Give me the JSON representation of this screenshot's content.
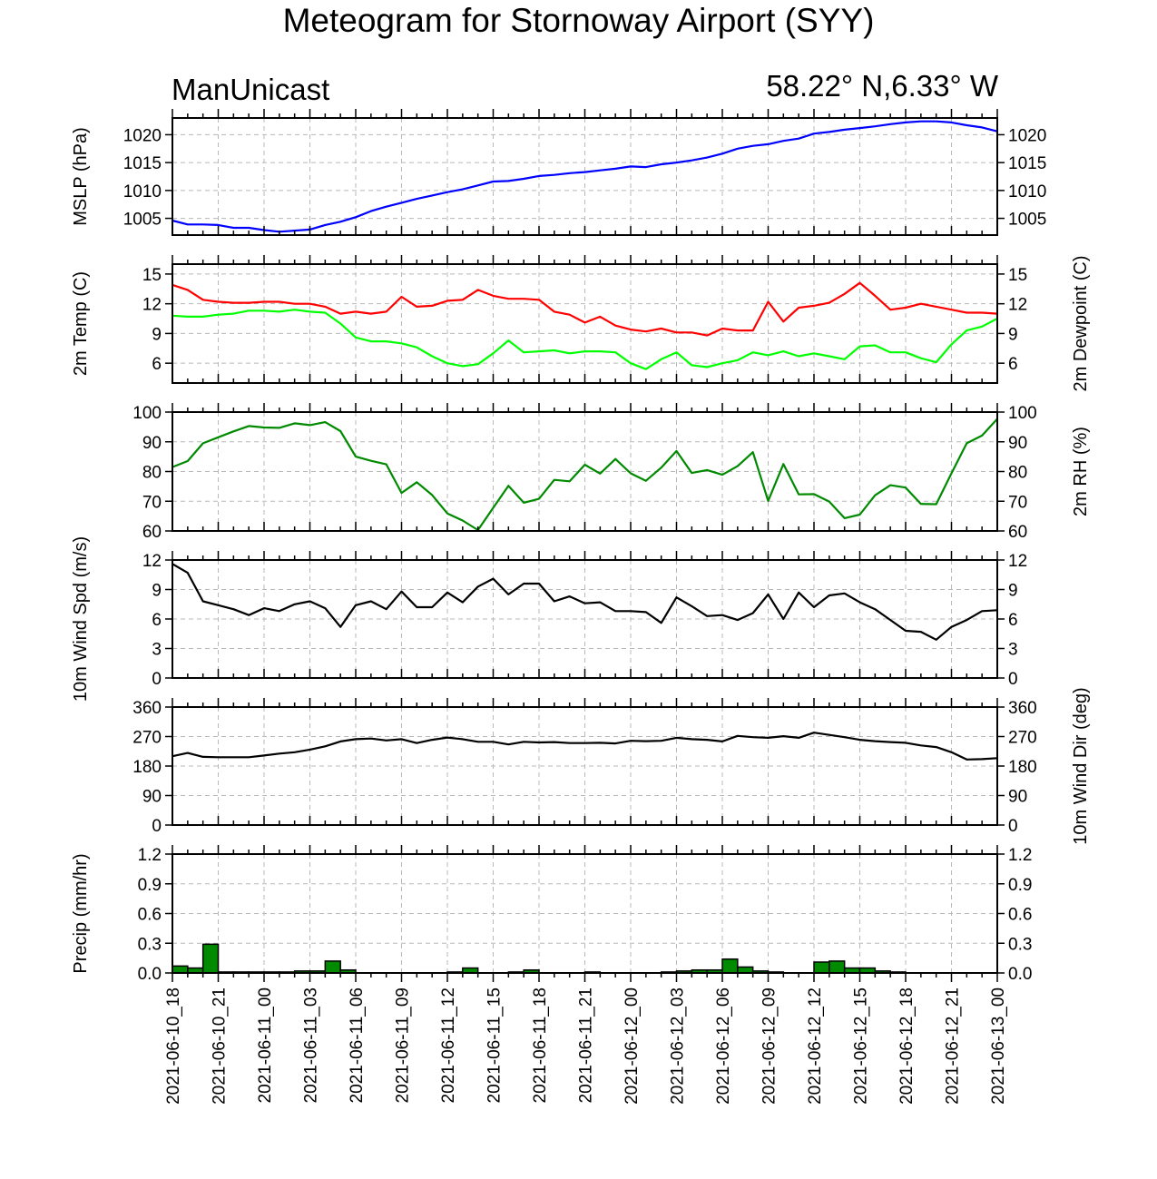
{
  "title": "Meteogram for Stornoway Airport (SYY)",
  "model": "ManUnicast",
  "location": "58.22° N,6.33° W",
  "colors": {
    "mslp": "#0000ff",
    "temp": "#ff0000",
    "dewpoint": "#00ff00",
    "rh": "#008a00",
    "wind_speed": "#000000",
    "wind_dir": "#000000",
    "precip_fill": "#008a00",
    "grid": "#b8b8b8"
  },
  "chart_data": {
    "type": "line",
    "x_axis": {
      "range_hours": [
        0,
        54
      ],
      "tick_labels": [
        "2021-06-10_18",
        "2021-06-10_21",
        "2021-06-11_00",
        "2021-06-11_03",
        "2021-06-11_06",
        "2021-06-11_09",
        "2021-06-11_12",
        "2021-06-11_15",
        "2021-06-11_18",
        "2021-06-11_21",
        "2021-06-12_00",
        "2021-06-12_03",
        "2021-06-12_06",
        "2021-06-12_09",
        "2021-06-12_12",
        "2021-06-12_15",
        "2021-06-12_18",
        "2021-06-12_21",
        "2021-06-13_00"
      ]
    },
    "panels": [
      {
        "id": "mslp",
        "type": "line",
        "ylabel_left": "MSLP (hPa)",
        "ylabel_right": "",
        "ylim": [
          1002,
          1023
        ],
        "yticks": [
          1005,
          1010,
          1015,
          1020
        ],
        "right_ticks": true,
        "series": [
          {
            "color_key": "mslp",
            "values": [
              1004.6,
              1003.9,
              1003.9,
              1003.8,
              1003.3,
              1003.3,
              1002.9,
              1002.6,
              1002.8,
              1003.0,
              1003.8,
              1004.4,
              1005.2,
              1006.3,
              1007.1,
              1007.8,
              1008.5,
              1009.1,
              1009.7,
              1010.2,
              1010.9,
              1011.6,
              1011.7,
              1012.1,
              1012.6,
              1012.8,
              1013.1,
              1013.3,
              1013.6,
              1013.9,
              1014.3,
              1014.2,
              1014.7,
              1015.0,
              1015.4,
              1015.9,
              1016.6,
              1017.5,
              1018.0,
              1018.3,
              1018.9,
              1019.3,
              1020.2,
              1020.5,
              1020.9,
              1021.2,
              1021.5,
              1021.9,
              1022.2,
              1022.4,
              1022.4,
              1022.2,
              1021.7,
              1021.3,
              1020.6
            ]
          }
        ]
      },
      {
        "id": "temp",
        "type": "line",
        "ylabel_left": "2m Temp (C)",
        "ylabel_right": "2m Dewpoint (C)",
        "ylim": [
          4,
          16
        ],
        "yticks": [
          6,
          9,
          12,
          15
        ],
        "right_ticks": true,
        "series": [
          {
            "color_key": "temp",
            "values": [
              13.9,
              13.4,
              12.4,
              12.2,
              12.1,
              12.1,
              12.2,
              12.2,
              12.0,
              12.0,
              11.7,
              11.0,
              11.2,
              11.0,
              11.2,
              12.7,
              11.7,
              11.8,
              12.3,
              12.4,
              13.4,
              12.8,
              12.5,
              12.5,
              12.4,
              11.2,
              10.9,
              10.1,
              10.7,
              9.8,
              9.4,
              9.2,
              9.5,
              9.1,
              9.1,
              8.8,
              9.5,
              9.3,
              9.3,
              12.2,
              10.2,
              11.6,
              11.8,
              12.1,
              13.0,
              14.1,
              12.8,
              11.4,
              11.6,
              12.0,
              11.7,
              11.4,
              11.1,
              11.1,
              11.0
            ]
          },
          {
            "color_key": "dewpoint",
            "values": [
              10.8,
              10.7,
              10.7,
              10.9,
              11.0,
              11.3,
              11.3,
              11.2,
              11.4,
              11.2,
              11.1,
              10.0,
              8.6,
              8.2,
              8.2,
              8.0,
              7.6,
              6.7,
              6.0,
              5.7,
              5.9,
              7.0,
              8.3,
              7.1,
              7.2,
              7.3,
              7.0,
              7.2,
              7.2,
              7.1,
              6.0,
              5.4,
              6.4,
              7.1,
              5.8,
              5.6,
              6.0,
              6.3,
              7.1,
              6.8,
              7.2,
              6.7,
              7.0,
              6.7,
              6.4,
              7.7,
              7.8,
              7.1,
              7.1,
              6.5,
              6.1,
              7.9,
              9.3,
              9.7,
              10.5
            ]
          }
        ]
      },
      {
        "id": "rh",
        "type": "line",
        "ylabel_left": "",
        "ylabel_right": "2m RH (%)",
        "ylim": [
          60,
          100
        ],
        "yticks": [
          60,
          70,
          80,
          90,
          100
        ],
        "left_labels": true,
        "right_labels": true,
        "series": [
          {
            "color_key": "rh",
            "values": [
              81.5,
              83.5,
              89.5,
              91.5,
              93.5,
              95.3,
              94.8,
              94.7,
              96.2,
              95.6,
              96.6,
              93.6,
              85.0,
              83.6,
              82.4,
              72.8,
              76.4,
              72.1,
              65.9,
              63.5,
              60.3,
              67.8,
              75.2,
              69.5,
              70.8,
              77.2,
              76.7,
              82.3,
              79.3,
              84.2,
              79.4,
              76.9,
              81.3,
              86.9,
              79.5,
              80.5,
              78.9,
              81.8,
              86.5,
              70.1,
              82.5,
              72.3,
              72.4,
              69.9,
              64.3,
              65.5,
              72.0,
              75.4,
              74.6,
              69.1,
              69.0,
              79.4,
              89.5,
              92.1,
              97.7
            ]
          }
        ]
      },
      {
        "id": "wind_speed",
        "type": "line",
        "ylabel_left": "10m Wind Spd (m/s)",
        "ylabel_right": "",
        "ylim": [
          0,
          12
        ],
        "yticks": [
          0,
          3,
          6,
          9,
          12
        ],
        "left_labels": true,
        "right_labels": true,
        "series": [
          {
            "color_key": "wind_speed",
            "values": [
              11.6,
              10.7,
              7.8,
              7.4,
              7.0,
              6.4,
              7.1,
              6.8,
              7.5,
              7.8,
              7.1,
              5.2,
              7.4,
              7.8,
              7.0,
              8.8,
              7.2,
              7.2,
              8.7,
              7.7,
              9.3,
              10.1,
              8.5,
              9.6,
              9.6,
              7.8,
              8.3,
              7.6,
              7.7,
              6.8,
              6.8,
              6.7,
              5.6,
              8.2,
              7.3,
              6.3,
              6.4,
              5.9,
              6.6,
              8.5,
              6.0,
              8.7,
              7.2,
              8.4,
              8.6,
              7.7,
              7.0,
              5.9,
              4.8,
              4.7,
              3.9,
              5.2,
              5.9,
              6.8,
              6.9
            ]
          }
        ]
      },
      {
        "id": "wind_dir",
        "type": "line",
        "ylabel_left": "",
        "ylabel_right": "10m Wind Dir (deg)",
        "ylim": [
          0,
          360
        ],
        "yticks": [
          0,
          90,
          180,
          270,
          360
        ],
        "left_labels": true,
        "right_labels": true,
        "series": [
          {
            "color_key": "wind_dir",
            "values": [
              210,
              220,
              208,
              207,
              207,
              207,
              212,
              218,
              222,
              230,
              240,
              255,
              262,
              264,
              258,
              262,
              250,
              260,
              267,
              262,
              254,
              254,
              246,
              254,
              252,
              253,
              250,
              250,
              251,
              249,
              257,
              256,
              257,
              266,
              262,
              260,
              255,
              272,
              268,
              266,
              271,
              266,
              282,
              275,
              268,
              260,
              256,
              253,
              251,
              243,
              238,
              222,
              200,
              201,
              204
            ]
          }
        ]
      },
      {
        "id": "precip",
        "type": "bar",
        "ylabel_left": "Precip (mm/hr)",
        "ylabel_right": "",
        "ylim": [
          0,
          1.2
        ],
        "yticks": [
          0.0,
          0.3,
          0.6,
          0.9,
          1.2
        ],
        "yticklabels": [
          "0.0",
          "0.3",
          "0.6",
          "0.9",
          "1.2"
        ],
        "left_labels": true,
        "right_labels": true,
        "values": [
          0.07,
          0.05,
          0.29,
          0.01,
          0.01,
          0.01,
          0.01,
          0.01,
          0.02,
          0.02,
          0.12,
          0.03,
          0,
          0,
          0,
          0,
          0,
          0,
          0.01,
          0.05,
          0,
          0,
          0.01,
          0.03,
          0,
          0,
          0,
          0.01,
          0,
          0,
          0,
          0,
          0.01,
          0.02,
          0.03,
          0.03,
          0.14,
          0.06,
          0.02,
          0.01,
          0,
          0,
          0.11,
          0.12,
          0.05,
          0.05,
          0.02,
          0.01,
          0,
          0,
          0,
          0,
          0,
          0,
          0
        ]
      }
    ]
  }
}
